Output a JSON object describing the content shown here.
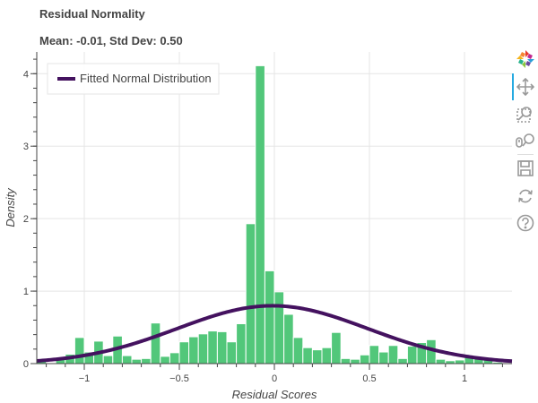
{
  "title": "Residual Normality",
  "subtitle": "Mean: -0.01, Std Dev: 0.50",
  "toolbar": {
    "buttons": [
      {
        "icon": "bokeh-logo-icon"
      },
      {
        "icon": "pan-icon"
      },
      {
        "icon": "box-zoom-icon"
      },
      {
        "icon": "wheel-zoom-icon"
      },
      {
        "icon": "save-icon"
      },
      {
        "icon": "reset-icon"
      },
      {
        "icon": "help-icon"
      }
    ]
  },
  "chart_data": {
    "type": "bar",
    "xlabel": "Residual Scores",
    "ylabel": "Density",
    "xlim": [
      -1.25,
      1.25
    ],
    "ylim": [
      0,
      4.3
    ],
    "xticks": [
      -1,
      -0.5,
      0,
      0.5,
      1
    ],
    "xtick_labels": [
      "−1",
      "−0.5",
      "0",
      "0.5",
      "1"
    ],
    "yticks": [
      0,
      1,
      2,
      3,
      4
    ],
    "grid": true,
    "legend_position": "top-left",
    "bar_color": "#52c77a",
    "line_color": "#44125f",
    "histogram": {
      "bin_width": 0.05,
      "bin_left_edges": [
        -1.25,
        -1.2,
        -1.15,
        -1.1,
        -1.05,
        -1.0,
        -0.95,
        -0.9,
        -0.85,
        -0.8,
        -0.75,
        -0.7,
        -0.65,
        -0.6,
        -0.55,
        -0.5,
        -0.45,
        -0.4,
        -0.35,
        -0.3,
        -0.25,
        -0.2,
        -0.15,
        -0.1,
        -0.05,
        0.0,
        0.05,
        0.1,
        0.15,
        0.2,
        0.25,
        0.3,
        0.35,
        0.4,
        0.45,
        0.5,
        0.55,
        0.6,
        0.65,
        0.7,
        0.75,
        0.8,
        0.85,
        0.9,
        0.95,
        1.0,
        1.05,
        1.1,
        1.15,
        1.2
      ],
      "densities": [
        0.05,
        0.0,
        0.06,
        0.13,
        0.36,
        0.16,
        0.31,
        0.11,
        0.38,
        0.11,
        0.06,
        0.07,
        0.56,
        0.1,
        0.15,
        0.3,
        0.37,
        0.41,
        0.45,
        0.44,
        0.3,
        0.55,
        1.93,
        4.11,
        1.28,
        0.99,
        0.68,
        0.36,
        0.22,
        0.19,
        0.22,
        0.43,
        0.07,
        0.06,
        0.12,
        0.25,
        0.16,
        0.25,
        0.07,
        0.24,
        0.29,
        0.33,
        0.06,
        0.04,
        0.05,
        0.1,
        0.07,
        0.05,
        0.02,
        0.0
      ]
    },
    "series": [
      {
        "name": "Fitted Normal Distribution",
        "type": "line",
        "mean": -0.01,
        "std": 0.5
      }
    ]
  }
}
